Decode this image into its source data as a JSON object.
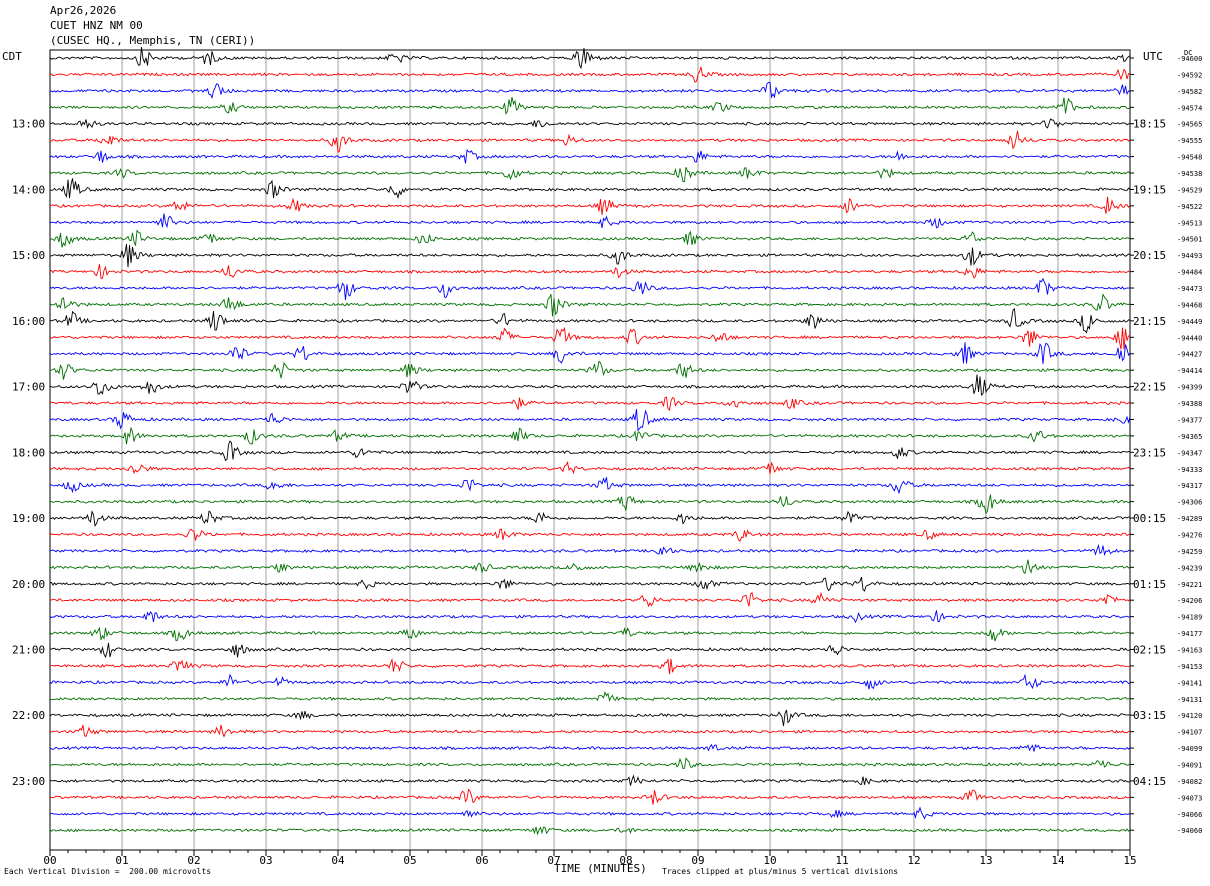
{
  "header": {
    "date": "Apr26,2026",
    "station": "CUET HNZ NM 00",
    "location": "(CUSEC HQ., Memphis, TN (CERI))"
  },
  "timezones": {
    "left": "CDT",
    "right": "UTC",
    "dc": "DC"
  },
  "footer": {
    "scale_note": "Each Vertical Division =  200.00 microvolts",
    "clip_note": "Traces clipped at plus/minus 5 vertical divisions"
  },
  "colors": {
    "cycle": [
      "#000000",
      "#ff0000",
      "#0000ff",
      "#007000"
    ],
    "grid": "#888888"
  },
  "chart_data": {
    "type": "line",
    "title": "",
    "xlabel": "TIME (MINUTES)",
    "x_ticks": [
      "00",
      "01",
      "02",
      "03",
      "04",
      "05",
      "06",
      "07",
      "08",
      "09",
      "10",
      "11",
      "12",
      "13",
      "14",
      "15"
    ],
    "xlim": [
      0,
      15
    ],
    "left_hour_labels": [
      {
        "row": 4,
        "text": "13:00"
      },
      {
        "row": 8,
        "text": "14:00"
      },
      {
        "row": 12,
        "text": "15:00"
      },
      {
        "row": 16,
        "text": "16:00"
      },
      {
        "row": 20,
        "text": "17:00"
      },
      {
        "row": 24,
        "text": "18:00"
      },
      {
        "row": 28,
        "text": "19:00"
      },
      {
        "row": 32,
        "text": "20:00"
      },
      {
        "row": 36,
        "text": "21:00"
      },
      {
        "row": 40,
        "text": "22:00"
      },
      {
        "row": 44,
        "text": "23:00"
      }
    ],
    "right_hour_labels": [
      {
        "row": 4,
        "text": "18:15"
      },
      {
        "row": 8,
        "text": "19:15"
      },
      {
        "row": 12,
        "text": "20:15"
      },
      {
        "row": 16,
        "text": "21:15"
      },
      {
        "row": 20,
        "text": "22:15"
      },
      {
        "row": 24,
        "text": "23:15"
      },
      {
        "row": 28,
        "text": "00:15"
      },
      {
        "row": 32,
        "text": "01:15"
      },
      {
        "row": 36,
        "text": "02:15"
      },
      {
        "row": 40,
        "text": "03:15"
      },
      {
        "row": 44,
        "text": "04:15"
      }
    ],
    "dc_offsets": [
      "-94600",
      "-94592",
      "-94582",
      "-94574",
      "-94565",
      "-94555",
      "-94548",
      "-94538",
      "-94529",
      "-94522",
      "-94513",
      "-94501",
      "-94493",
      "-94484",
      "-94473",
      "-94468",
      "-94449",
      "-94440",
      "-94427",
      "-94414",
      "-94399",
      "-94388",
      "-94377",
      "-94365",
      "-94347",
      "-94333",
      "-94317",
      "-94306",
      "-94289",
      "-94276",
      "-94259",
      "-94239",
      "-94221",
      "-94206",
      "-94189",
      "-94177",
      "-94163",
      "-94153",
      "-94141",
      "-94131",
      "-94120",
      "-94107",
      "-94099",
      "-94091",
      "-94082",
      "-94073",
      "-94066",
      "-94060"
    ],
    "bursts": [
      [
        [
          1.3,
          1.0
        ],
        [
          2.2,
          0.7
        ],
        [
          4.8,
          0.6
        ],
        [
          7.4,
          1.3
        ],
        [
          14.9,
          0.4
        ]
      ],
      [
        [
          9.0,
          0.8
        ],
        [
          14.9,
          0.5
        ]
      ],
      [
        [
          2.3,
          0.8
        ],
        [
          10.0,
          0.9
        ],
        [
          14.9,
          0.5
        ]
      ],
      [
        [
          2.5,
          0.5
        ],
        [
          6.4,
          0.9
        ],
        [
          9.3,
          0.5
        ],
        [
          14.1,
          1.0
        ]
      ],
      [
        [
          0.5,
          0.6
        ],
        [
          6.8,
          0.4
        ],
        [
          13.9,
          0.6
        ]
      ],
      [
        [
          0.8,
          0.7
        ],
        [
          4.0,
          1.1
        ],
        [
          7.2,
          0.5
        ],
        [
          13.4,
          0.9
        ]
      ],
      [
        [
          0.7,
          0.6
        ],
        [
          5.8,
          0.6
        ],
        [
          9.0,
          0.6
        ],
        [
          11.8,
          0.4
        ]
      ],
      [
        [
          1.0,
          0.4
        ],
        [
          6.4,
          0.7
        ],
        [
          8.8,
          0.9
        ],
        [
          9.7,
          0.6
        ],
        [
          11.6,
          0.5
        ]
      ],
      [
        [
          0.3,
          1.1
        ],
        [
          3.1,
          0.8
        ],
        [
          4.8,
          0.8
        ]
      ],
      [
        [
          1.8,
          0.6
        ],
        [
          3.4,
          0.6
        ],
        [
          7.7,
          0.8
        ],
        [
          11.1,
          0.7
        ],
        [
          14.7,
          0.8
        ]
      ],
      [
        [
          1.6,
          0.8
        ],
        [
          7.7,
          0.5
        ],
        [
          12.3,
          0.5
        ]
      ],
      [
        [
          0.2,
          0.8
        ],
        [
          1.2,
          0.7
        ],
        [
          2.2,
          0.6
        ],
        [
          5.2,
          0.6
        ],
        [
          8.9,
          0.6
        ],
        [
          12.8,
          0.6
        ]
      ],
      [
        [
          1.1,
          1.2
        ],
        [
          7.9,
          0.8
        ],
        [
          12.8,
          1.0
        ]
      ],
      [
        [
          0.7,
          0.6
        ],
        [
          2.5,
          0.7
        ],
        [
          7.9,
          0.5
        ],
        [
          12.8,
          0.7
        ]
      ],
      [
        [
          4.1,
          1.1
        ],
        [
          5.5,
          0.9
        ],
        [
          8.2,
          0.8
        ],
        [
          13.8,
          0.9
        ]
      ],
      [
        [
          0.2,
          0.9
        ],
        [
          2.5,
          0.9
        ],
        [
          7.0,
          1.2
        ],
        [
          14.6,
          1.0
        ]
      ],
      [
        [
          0.3,
          0.8
        ],
        [
          2.3,
          1.1
        ],
        [
          6.3,
          0.6
        ],
        [
          10.6,
          0.8
        ],
        [
          13.4,
          1.0
        ],
        [
          14.4,
          1.0
        ]
      ],
      [
        [
          6.3,
          0.8
        ],
        [
          7.1,
          1.0
        ],
        [
          8.1,
          0.8
        ],
        [
          9.3,
          0.6
        ],
        [
          13.6,
          0.9
        ],
        [
          14.9,
          1.1
        ]
      ],
      [
        [
          2.6,
          0.9
        ],
        [
          3.5,
          0.8
        ],
        [
          7.1,
          0.9
        ],
        [
          12.7,
          1.0
        ],
        [
          13.8,
          1.1
        ],
        [
          14.9,
          1.2
        ]
      ],
      [
        [
          0.2,
          0.8
        ],
        [
          3.2,
          0.8
        ],
        [
          5.0,
          0.7
        ],
        [
          7.6,
          0.9
        ],
        [
          8.8,
          0.8
        ]
      ],
      [
        [
          0.7,
          1.0
        ],
        [
          1.4,
          0.7
        ],
        [
          5.0,
          0.8
        ],
        [
          12.9,
          1.3
        ]
      ],
      [
        [
          6.5,
          0.5
        ],
        [
          8.6,
          0.6
        ],
        [
          9.5,
          0.5
        ],
        [
          10.3,
          0.5
        ]
      ],
      [
        [
          1.0,
          0.9
        ],
        [
          3.1,
          0.6
        ],
        [
          8.2,
          1.3
        ],
        [
          14.9,
          0.4
        ]
      ],
      [
        [
          1.1,
          0.8
        ],
        [
          2.8,
          0.7
        ],
        [
          4.0,
          0.5
        ],
        [
          6.5,
          0.7
        ],
        [
          8.2,
          0.6
        ],
        [
          13.7,
          0.6
        ]
      ],
      [
        [
          2.5,
          1.0
        ],
        [
          4.3,
          0.5
        ],
        [
          11.8,
          0.6
        ]
      ],
      [
        [
          1.2,
          0.7
        ],
        [
          7.2,
          0.5
        ],
        [
          10.0,
          0.6
        ]
      ],
      [
        [
          0.3,
          0.6
        ],
        [
          3.1,
          0.5
        ],
        [
          5.8,
          0.7
        ],
        [
          7.7,
          0.7
        ],
        [
          11.8,
          1.0
        ]
      ],
      [
        [
          8.0,
          0.8
        ],
        [
          10.2,
          0.6
        ],
        [
          13.0,
          1.2
        ]
      ],
      [
        [
          0.6,
          0.8
        ],
        [
          2.2,
          0.7
        ],
        [
          6.8,
          0.6
        ],
        [
          8.8,
          0.5
        ],
        [
          11.1,
          0.6
        ]
      ],
      [
        [
          2.0,
          0.7
        ],
        [
          6.3,
          0.6
        ],
        [
          9.6,
          0.6
        ],
        [
          12.2,
          0.4
        ]
      ],
      [
        [
          8.5,
          0.6
        ],
        [
          14.6,
          0.6
        ]
      ],
      [
        [
          3.2,
          0.4
        ],
        [
          6.0,
          0.5
        ],
        [
          7.3,
          0.5
        ],
        [
          9.0,
          0.6
        ],
        [
          13.6,
          0.8
        ]
      ],
      [
        [
          4.4,
          0.4
        ],
        [
          6.3,
          0.5
        ],
        [
          9.1,
          0.7
        ],
        [
          10.8,
          0.6
        ],
        [
          11.3,
          0.7
        ]
      ],
      [
        [
          8.3,
          0.7
        ],
        [
          9.7,
          0.8
        ],
        [
          10.7,
          0.6
        ],
        [
          14.7,
          0.6
        ]
      ],
      [
        [
          1.4,
          0.6
        ],
        [
          11.2,
          0.4
        ],
        [
          12.3,
          0.5
        ]
      ],
      [
        [
          0.7,
          0.7
        ],
        [
          1.8,
          0.8
        ],
        [
          5.0,
          0.6
        ],
        [
          8.0,
          0.4
        ],
        [
          13.1,
          0.8
        ]
      ],
      [
        [
          0.8,
          0.7
        ],
        [
          2.6,
          0.7
        ],
        [
          10.9,
          0.6
        ]
      ],
      [
        [
          1.8,
          0.8
        ],
        [
          4.8,
          0.7
        ],
        [
          8.6,
          0.7
        ]
      ],
      [
        [
          2.5,
          0.6
        ],
        [
          3.2,
          0.4
        ],
        [
          11.4,
          0.6
        ],
        [
          13.6,
          0.9
        ]
      ],
      [
        [
          7.7,
          0.6
        ]
      ],
      [
        [
          3.5,
          0.4
        ],
        [
          10.2,
          0.9
        ]
      ],
      [
        [
          0.5,
          0.6
        ],
        [
          2.4,
          0.6
        ]
      ],
      [
        [
          9.2,
          0.3
        ],
        [
          13.6,
          0.5
        ]
      ],
      [
        [
          8.8,
          0.6
        ],
        [
          14.6,
          0.5
        ]
      ],
      [
        [
          8.1,
          0.4
        ],
        [
          11.3,
          0.3
        ]
      ],
      [
        [
          5.8,
          0.8
        ],
        [
          8.4,
          0.7
        ],
        [
          12.8,
          0.7
        ]
      ],
      [
        [
          5.8,
          0.4
        ],
        [
          10.9,
          0.3
        ],
        [
          12.1,
          0.5
        ]
      ],
      [
        [
          6.8,
          0.5
        ],
        [
          8.0,
          0.3
        ]
      ]
    ]
  }
}
